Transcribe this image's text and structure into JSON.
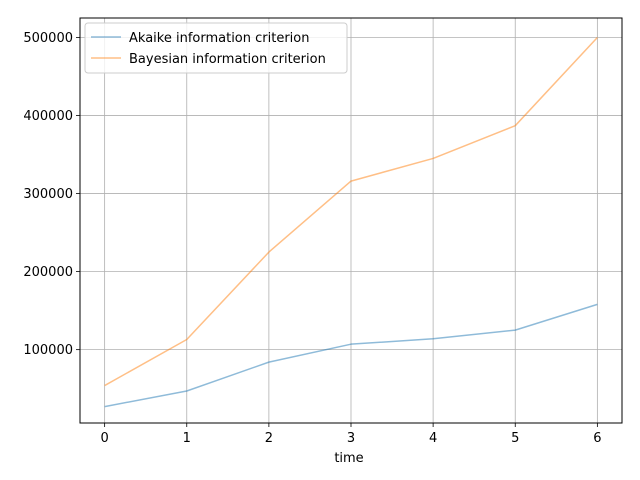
{
  "chart_data": {
    "type": "line",
    "title": "",
    "xlabel": "time",
    "ylabel": "",
    "x": [
      0,
      1,
      2,
      3,
      4,
      5,
      6
    ],
    "x_ticks": [
      "0",
      "1",
      "2",
      "3",
      "4",
      "5",
      "6"
    ],
    "y_ticks": [
      "100000",
      "200000",
      "300000",
      "400000",
      "500000"
    ],
    "xlim": [
      -0.3,
      6.3
    ],
    "ylim": [
      6000,
      525000
    ],
    "grid": true,
    "legend_position": "upper-left",
    "series": [
      {
        "name": "Akaike information criterion",
        "color": "#1f77b4",
        "values": [
          27000,
          47000,
          84000,
          107000,
          114000,
          125000,
          158000
        ]
      },
      {
        "name": "Bayesian information criterion",
        "color": "#ff7f0e",
        "values": [
          54000,
          113000,
          225000,
          316000,
          345000,
          387000,
          500000
        ]
      }
    ]
  }
}
